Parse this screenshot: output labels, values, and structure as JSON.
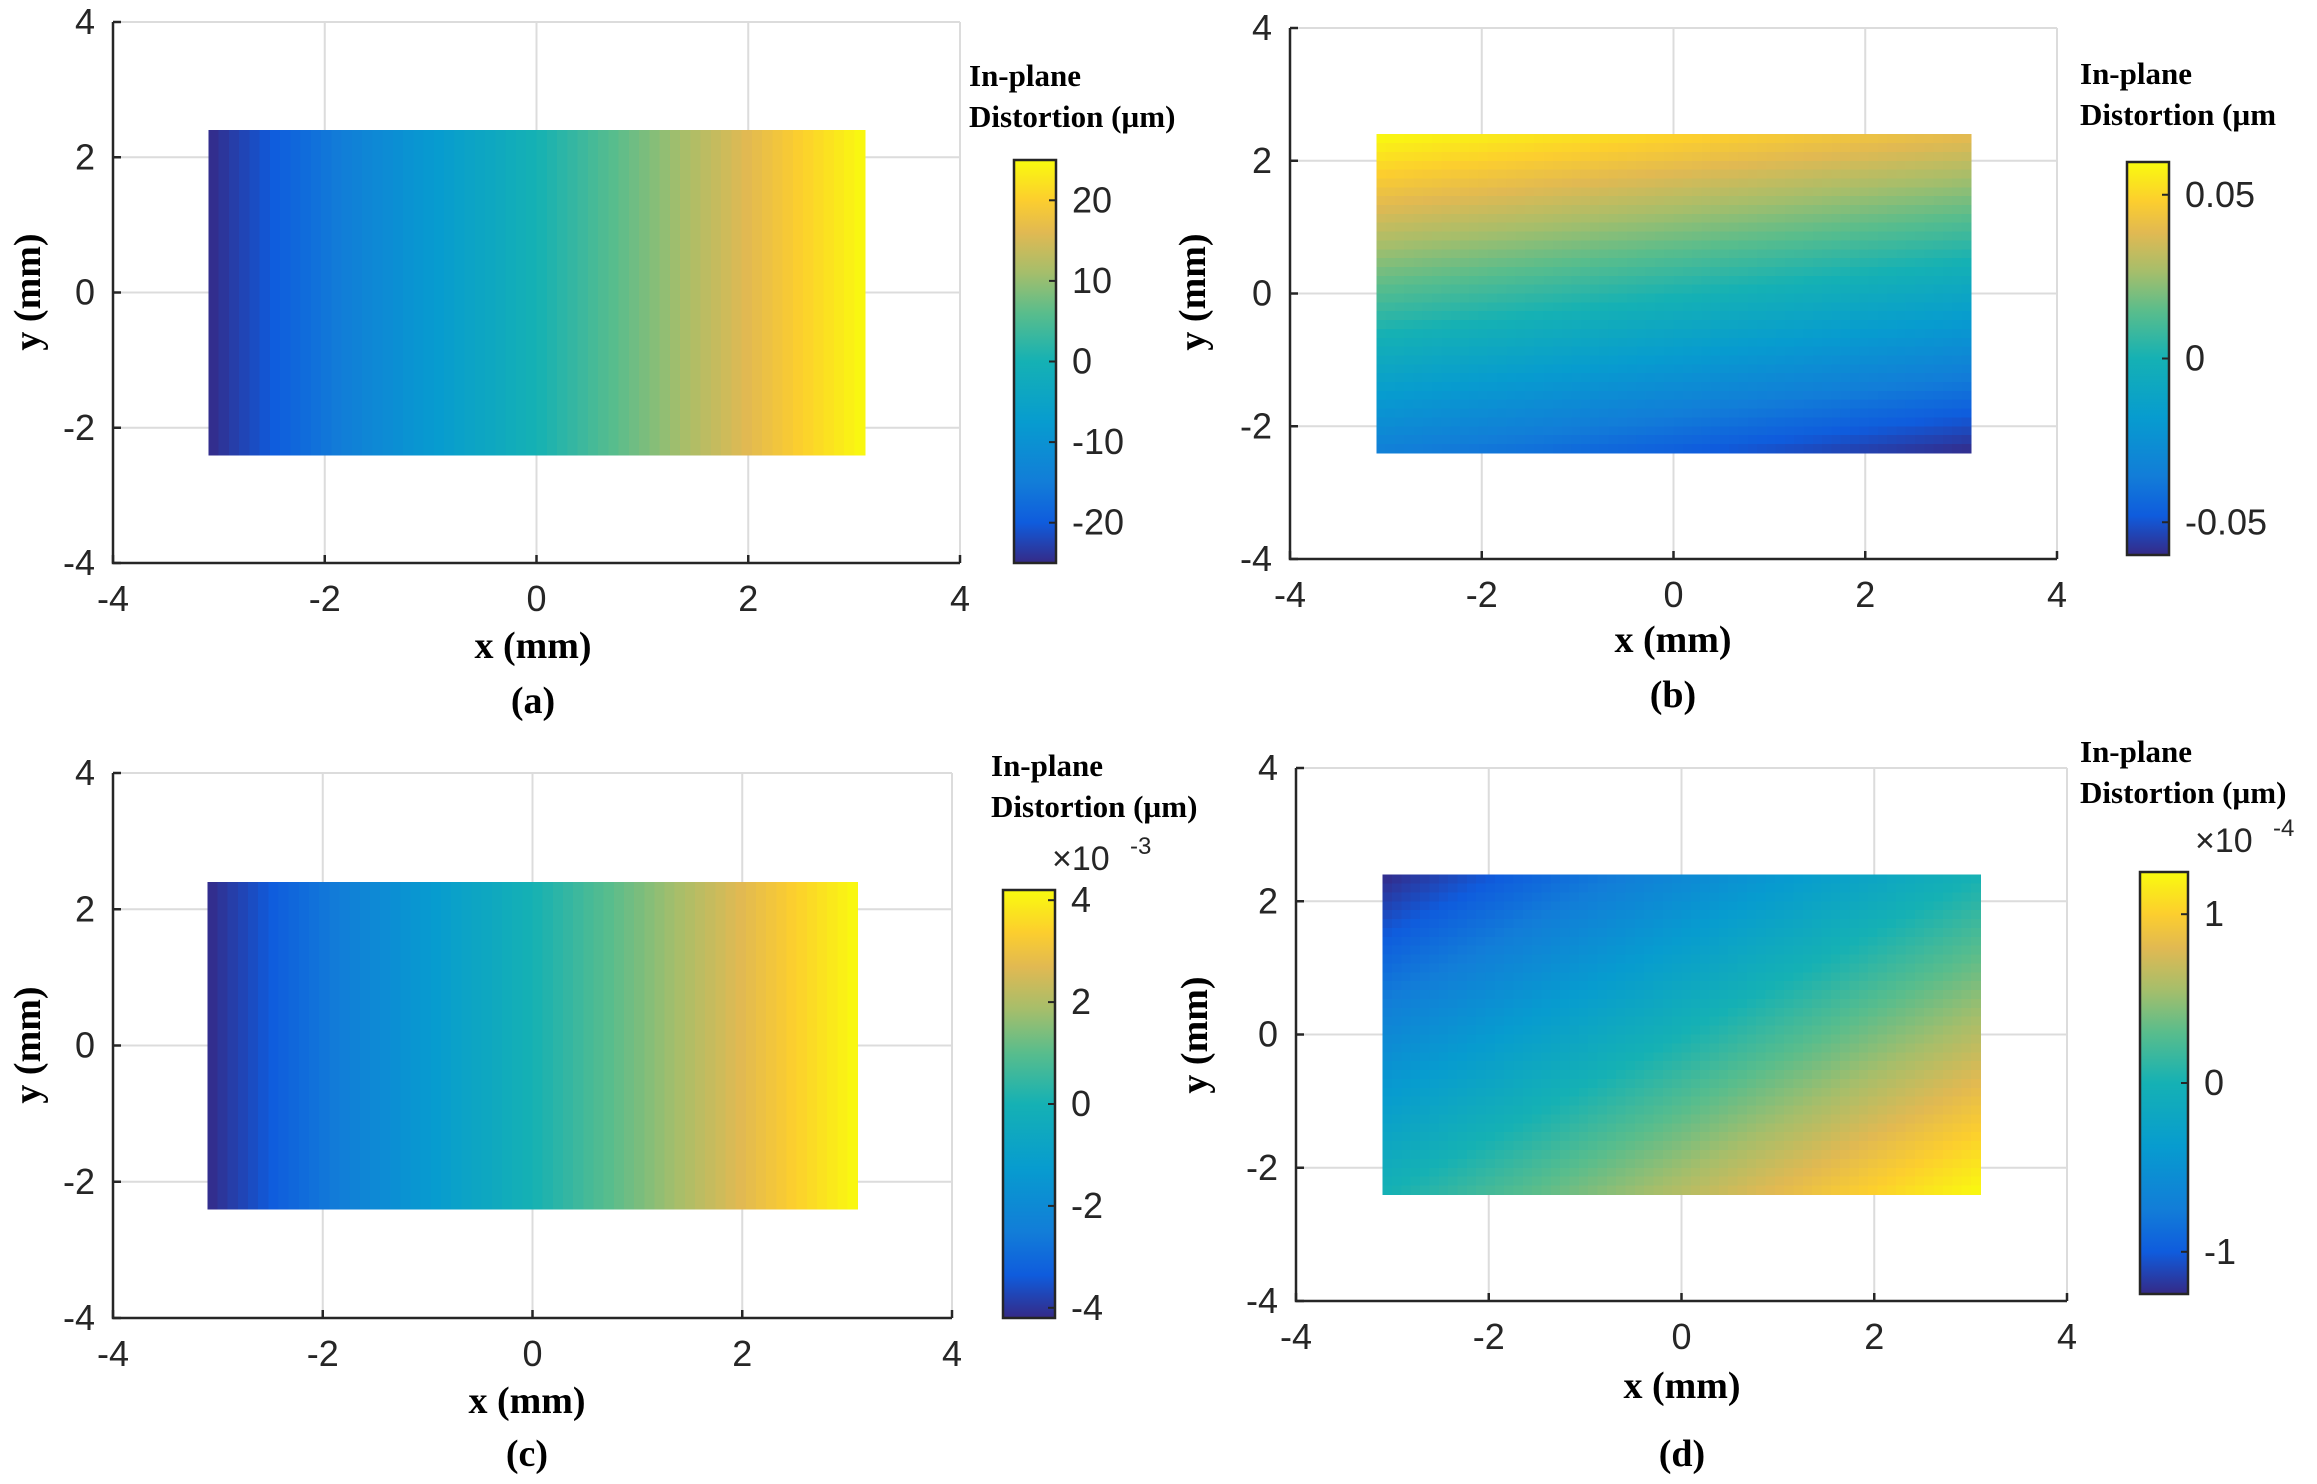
{
  "chart_data": [
    {
      "type": "heatmap",
      "panel_label": "(a)",
      "xlabel": "x (mm)",
      "ylabel": "y (mm)",
      "xlim": [
        -4,
        4
      ],
      "ylim": [
        -4,
        4
      ],
      "xticks": [
        "-4",
        "-2",
        "0",
        "2",
        "4"
      ],
      "yticks": [
        "-4",
        "-2",
        "0",
        "2",
        "4"
      ],
      "grid": true,
      "field_extent": {
        "x": [
          -3.1,
          3.1
        ],
        "y": [
          -2.4,
          2.4
        ]
      },
      "field_pattern": "varies along x: minimum at left edge, maximum at right edge",
      "field_corners": {
        "top_left": -25,
        "top_right": 25,
        "bottom_left": -25,
        "bottom_right": 25
      },
      "colorbar": {
        "title_line1": "In-plane",
        "title_line2": "Distortion (µm)",
        "range": [
          -25,
          25
        ],
        "ticks": [
          -20,
          -10,
          0,
          10,
          20
        ],
        "tick_labels": [
          "-20",
          "-10",
          "0",
          "10",
          "20"
        ],
        "multiplier_base": "",
        "multiplier_exp": ""
      }
    },
    {
      "type": "heatmap",
      "panel_label": "(b)",
      "xlabel": "x (mm)",
      "ylabel": "y (mm)",
      "xlim": [
        -4,
        4
      ],
      "ylim": [
        -4,
        4
      ],
      "xticks": [
        "-4",
        "-2",
        "0",
        "2",
        "4"
      ],
      "yticks": [
        "-4",
        "-2",
        "0",
        "2",
        "4"
      ],
      "grid": true,
      "field_extent": {
        "x": [
          -3.1,
          3.1
        ],
        "y": [
          -2.4,
          2.4
        ]
      },
      "field_pattern": "varies mainly along y: maximum at top-left, minimum at bottom-right",
      "field_corners": {
        "top_left": 0.06,
        "top_right": 0.04,
        "bottom_left": -0.035,
        "bottom_right": -0.06
      },
      "colorbar": {
        "title_line1": "In-plane",
        "title_line2": "Distortion (µm",
        "range": [
          -0.06,
          0.06
        ],
        "ticks": [
          -0.05,
          0,
          0.05
        ],
        "tick_labels": [
          "-0.05",
          "0",
          "0.05"
        ],
        "multiplier_base": "",
        "multiplier_exp": ""
      }
    },
    {
      "type": "heatmap",
      "panel_label": "(c)",
      "xlabel": "x (mm)",
      "ylabel": "y (mm)",
      "xlim": [
        -4,
        4
      ],
      "ylim": [
        -4,
        4
      ],
      "xticks": [
        "-4",
        "-2",
        "0",
        "2",
        "4"
      ],
      "yticks": [
        "-4",
        "-2",
        "0",
        "2",
        "4"
      ],
      "grid": true,
      "field_extent": {
        "x": [
          -3.1,
          3.1
        ],
        "y": [
          -2.4,
          2.4
        ]
      },
      "field_pattern": "varies along x: minimum at left edge, maximum at right edge",
      "field_corners": {
        "top_left": -4.2,
        "top_right": 4.2,
        "bottom_left": -4.2,
        "bottom_right": 4.2
      },
      "colorbar": {
        "title_line1": "In-plane",
        "title_line2": "Distortion (µm)",
        "range": [
          -4.2,
          4.2
        ],
        "ticks": [
          -4,
          -2,
          0,
          2,
          4
        ],
        "tick_labels": [
          "-4",
          "-2",
          "0",
          "2",
          "4"
        ],
        "multiplier_base": "×10",
        "multiplier_exp": "-3"
      }
    },
    {
      "type": "heatmap",
      "panel_label": "(d)",
      "xlabel": "x (mm)",
      "ylabel": "y (mm)",
      "xlim": [
        -4,
        4
      ],
      "ylim": [
        -4,
        4
      ],
      "xticks": [
        "-4",
        "-2",
        "0",
        "2",
        "4"
      ],
      "yticks": [
        "-4",
        "-2",
        "0",
        "2",
        "4"
      ],
      "grid": true,
      "field_extent": {
        "x": [
          -3.1,
          3.1
        ],
        "y": [
          -2.4,
          2.4
        ]
      },
      "field_pattern": "diagonal gradient: minimum at top-left, maximum at bottom-right",
      "field_corners": {
        "top_left": -1.25,
        "top_right": 0,
        "bottom_left": 0,
        "bottom_right": 1.25
      },
      "colorbar": {
        "title_line1": "In-plane",
        "title_line2": "Distortion (µm)",
        "range": [
          -1.25,
          1.25
        ],
        "ticks": [
          -1,
          0,
          1
        ],
        "tick_labels": [
          "-1",
          "0",
          "1"
        ],
        "multiplier_base": "×10",
        "multiplier_exp": "-4"
      }
    }
  ]
}
